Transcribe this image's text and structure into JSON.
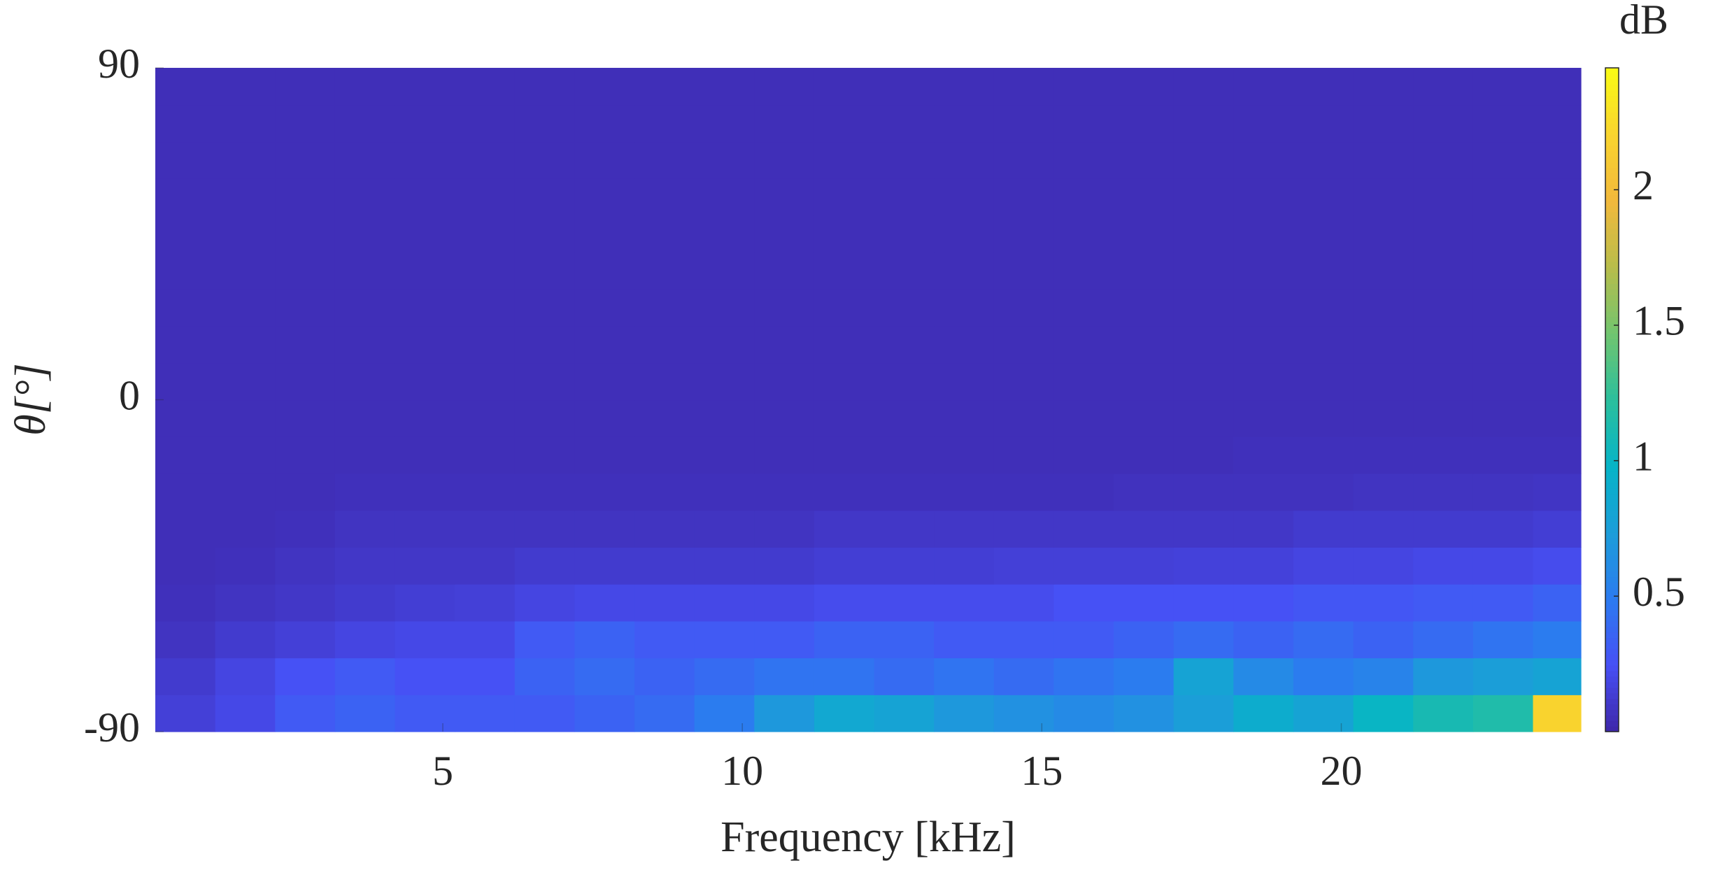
{
  "chart_data": {
    "type": "heatmap",
    "x_label": "Frequency [kHz]",
    "y_label": "θ[°]",
    "colorbar_label": "dB",
    "x": [
      0.7,
      1.7,
      2.7,
      3.7,
      4.7,
      5.7,
      6.7,
      7.7,
      8.7,
      9.7,
      10.7,
      11.7,
      12.7,
      13.7,
      14.7,
      15.7,
      16.7,
      17.7,
      18.7,
      19.7,
      20.7,
      21.7,
      22.7,
      23.7
    ],
    "y": [
      -85,
      -75,
      -65,
      -55,
      -45,
      -35,
      -25,
      -15,
      -5,
      5,
      15,
      25,
      35,
      45,
      55,
      65,
      75,
      85
    ],
    "xlim": [
      0.2,
      24
    ],
    "xticks": [
      5,
      10,
      15,
      20
    ],
    "ylim": [
      -90,
      90
    ],
    "yticks": [
      -90,
      0,
      90
    ],
    "clim": [
      0,
      2.45
    ],
    "cticks": [
      0.5,
      1,
      1.5,
      2
    ],
    "values": [
      [
        0.15,
        0.2,
        0.3,
        0.35,
        0.3,
        0.3,
        0.3,
        0.35,
        0.4,
        0.5,
        0.7,
        0.85,
        0.8,
        0.7,
        0.65,
        0.6,
        0.65,
        0.75,
        0.9,
        0.8,
        1.0,
        1.1,
        1.15,
        2.2
      ],
      [
        0.12,
        0.18,
        0.25,
        0.3,
        0.25,
        0.25,
        0.35,
        0.4,
        0.35,
        0.4,
        0.45,
        0.45,
        0.4,
        0.45,
        0.4,
        0.45,
        0.5,
        0.8,
        0.6,
        0.5,
        0.55,
        0.7,
        0.75,
        0.8
      ],
      [
        0.08,
        0.12,
        0.15,
        0.18,
        0.2,
        0.2,
        0.3,
        0.35,
        0.3,
        0.3,
        0.3,
        0.35,
        0.35,
        0.3,
        0.3,
        0.3,
        0.35,
        0.4,
        0.35,
        0.4,
        0.35,
        0.4,
        0.45,
        0.5
      ],
      [
        0.06,
        0.08,
        0.1,
        0.12,
        0.14,
        0.15,
        0.18,
        0.2,
        0.2,
        0.2,
        0.2,
        0.22,
        0.22,
        0.22,
        0.22,
        0.25,
        0.25,
        0.25,
        0.25,
        0.28,
        0.28,
        0.3,
        0.3,
        0.35
      ],
      [
        0.05,
        0.06,
        0.08,
        0.1,
        0.1,
        0.1,
        0.12,
        0.12,
        0.12,
        0.12,
        0.12,
        0.14,
        0.14,
        0.14,
        0.15,
        0.15,
        0.15,
        0.16,
        0.16,
        0.18,
        0.18,
        0.2,
        0.2,
        0.22
      ],
      [
        0.05,
        0.05,
        0.06,
        0.08,
        0.08,
        0.08,
        0.08,
        0.08,
        0.08,
        0.08,
        0.08,
        0.1,
        0.1,
        0.1,
        0.1,
        0.1,
        0.1,
        0.1,
        0.1,
        0.12,
        0.12,
        0.12,
        0.12,
        0.14
      ],
      [
        0.05,
        0.05,
        0.05,
        0.06,
        0.06,
        0.06,
        0.06,
        0.06,
        0.06,
        0.06,
        0.06,
        0.06,
        0.06,
        0.06,
        0.06,
        0.06,
        0.07,
        0.07,
        0.07,
        0.07,
        0.08,
        0.08,
        0.08,
        0.09
      ],
      [
        0.05,
        0.05,
        0.05,
        0.05,
        0.05,
        0.05,
        0.05,
        0.05,
        0.05,
        0.05,
        0.05,
        0.05,
        0.05,
        0.05,
        0.05,
        0.05,
        0.05,
        0.05,
        0.06,
        0.06,
        0.06,
        0.06,
        0.06,
        0.06
      ],
      [
        0.05,
        0.05,
        0.05,
        0.05,
        0.05,
        0.05,
        0.05,
        0.05,
        0.05,
        0.05,
        0.05,
        0.05,
        0.05,
        0.05,
        0.05,
        0.05,
        0.05,
        0.05,
        0.05,
        0.05,
        0.05,
        0.05,
        0.05,
        0.05
      ],
      [
        0.05,
        0.05,
        0.05,
        0.05,
        0.05,
        0.05,
        0.05,
        0.05,
        0.05,
        0.05,
        0.05,
        0.05,
        0.05,
        0.05,
        0.05,
        0.05,
        0.05,
        0.05,
        0.05,
        0.05,
        0.05,
        0.05,
        0.05,
        0.05
      ],
      [
        0.05,
        0.05,
        0.05,
        0.05,
        0.05,
        0.05,
        0.05,
        0.05,
        0.05,
        0.05,
        0.05,
        0.05,
        0.05,
        0.05,
        0.05,
        0.05,
        0.05,
        0.05,
        0.05,
        0.05,
        0.05,
        0.05,
        0.05,
        0.05
      ],
      [
        0.05,
        0.05,
        0.05,
        0.05,
        0.05,
        0.05,
        0.05,
        0.05,
        0.05,
        0.05,
        0.05,
        0.05,
        0.05,
        0.05,
        0.05,
        0.05,
        0.05,
        0.05,
        0.05,
        0.05,
        0.05,
        0.05,
        0.05,
        0.05
      ],
      [
        0.05,
        0.05,
        0.05,
        0.05,
        0.05,
        0.05,
        0.05,
        0.05,
        0.05,
        0.05,
        0.05,
        0.05,
        0.05,
        0.05,
        0.05,
        0.05,
        0.05,
        0.05,
        0.05,
        0.05,
        0.05,
        0.05,
        0.05,
        0.05
      ],
      [
        0.05,
        0.05,
        0.05,
        0.05,
        0.05,
        0.05,
        0.05,
        0.05,
        0.05,
        0.05,
        0.05,
        0.05,
        0.05,
        0.05,
        0.05,
        0.05,
        0.05,
        0.05,
        0.05,
        0.05,
        0.05,
        0.05,
        0.05,
        0.05
      ],
      [
        0.05,
        0.05,
        0.05,
        0.05,
        0.05,
        0.05,
        0.05,
        0.05,
        0.05,
        0.05,
        0.05,
        0.05,
        0.05,
        0.05,
        0.05,
        0.05,
        0.05,
        0.05,
        0.05,
        0.05,
        0.05,
        0.05,
        0.05,
        0.05
      ],
      [
        0.05,
        0.05,
        0.05,
        0.05,
        0.05,
        0.05,
        0.05,
        0.05,
        0.05,
        0.05,
        0.05,
        0.05,
        0.05,
        0.05,
        0.05,
        0.05,
        0.05,
        0.05,
        0.05,
        0.05,
        0.05,
        0.05,
        0.05,
        0.05
      ],
      [
        0.05,
        0.05,
        0.05,
        0.05,
        0.05,
        0.05,
        0.05,
        0.05,
        0.05,
        0.05,
        0.05,
        0.05,
        0.05,
        0.05,
        0.05,
        0.05,
        0.05,
        0.05,
        0.05,
        0.05,
        0.05,
        0.05,
        0.05,
        0.05
      ],
      [
        0.05,
        0.05,
        0.05,
        0.05,
        0.05,
        0.05,
        0.05,
        0.05,
        0.05,
        0.05,
        0.05,
        0.05,
        0.05,
        0.05,
        0.05,
        0.05,
        0.05,
        0.05,
        0.05,
        0.05,
        0.05,
        0.05,
        0.05,
        0.05
      ]
    ]
  }
}
